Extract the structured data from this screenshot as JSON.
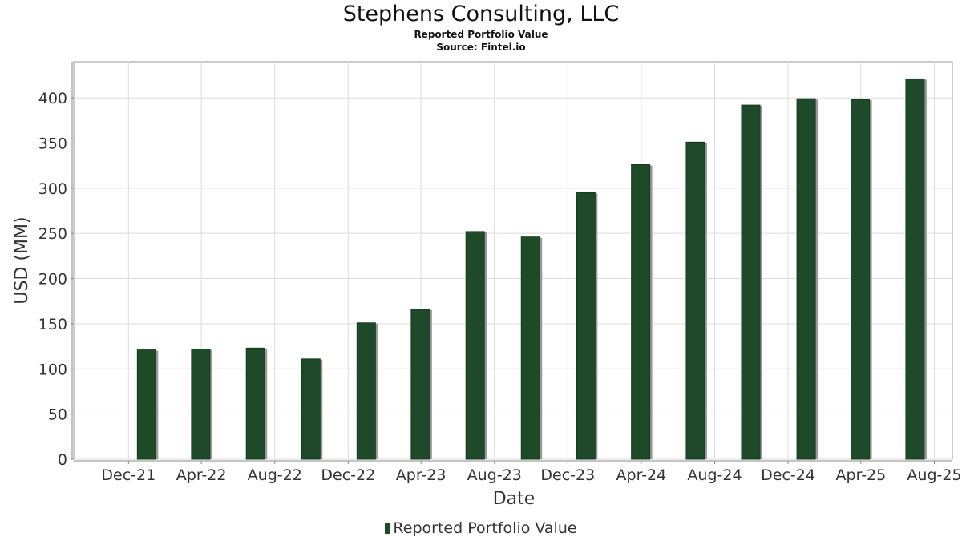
{
  "chart_data": {
    "type": "bar",
    "title": "Stephens Consulting, LLC",
    "subtitle": "Reported Portfolio Value",
    "source": "Source: Fintel.io",
    "xlabel": "Date",
    "ylabel": "USD (MM)",
    "ylim": [
      0,
      440
    ],
    "y_ticks": [
      0,
      50,
      100,
      150,
      200,
      250,
      300,
      350,
      400
    ],
    "x_tick_labels": [
      "Dec-21",
      "Apr-22",
      "Aug-22",
      "Dec-22",
      "Apr-23",
      "Aug-23",
      "Dec-23",
      "Apr-24",
      "Aug-24",
      "Dec-24",
      "Apr-25",
      "Aug-25"
    ],
    "x_range": [
      "2021-09-01",
      "2025-08-31"
    ],
    "grid": true,
    "legend_position": "bottom-center",
    "series": [
      {
        "name": "Reported Portfolio Value",
        "color": "#1f4a2a",
        "x": [
          "2021-12-31",
          "2022-03-31",
          "2022-06-30",
          "2022-09-30",
          "2022-12-31",
          "2023-03-31",
          "2023-06-30",
          "2023-09-30",
          "2023-12-31",
          "2024-03-31",
          "2024-06-30",
          "2024-09-30",
          "2024-12-31",
          "2025-03-31",
          "2025-06-30"
        ],
        "values": [
          121,
          122,
          123,
          111,
          151,
          166,
          252,
          246,
          295,
          326,
          351,
          392,
          399,
          398,
          421
        ]
      }
    ]
  }
}
